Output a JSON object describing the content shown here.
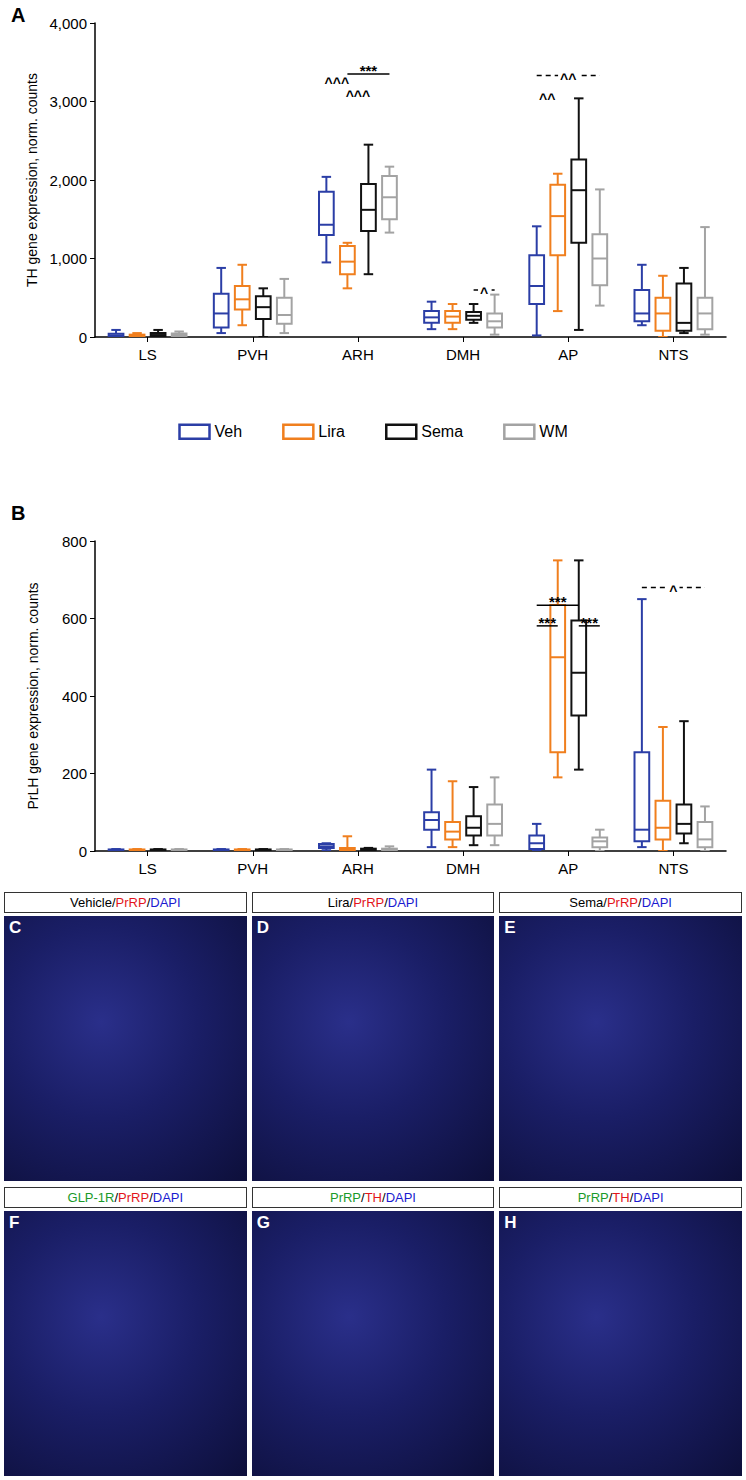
{
  "chart_data": [
    {
      "type": "boxplot",
      "panel": "A",
      "y_label": "TH gene expression, norm. counts",
      "categories": [
        "LS",
        "PVH",
        "ARH",
        "DMH",
        "AP",
        "NTS"
      ],
      "ylim": [
        0,
        4000
      ],
      "yticks": [
        0,
        1000,
        2000,
        3000,
        4000
      ],
      "grid": false,
      "legend": "bottom",
      "series": [
        {
          "name": "Veh",
          "color": "#2b3ea6",
          "values": [
            [
              0,
              5,
              20,
              40,
              90
            ],
            [
              50,
              120,
              300,
              550,
              880
            ],
            [
              950,
              1300,
              1430,
              1850,
              2040
            ],
            [
              100,
              180,
              250,
              330,
              450
            ],
            [
              20,
              420,
              650,
              1040,
              1410
            ],
            [
              150,
              200,
              300,
              600,
              920
            ]
          ]
        },
        {
          "name": "Lira",
          "color": "#f07f1e",
          "values": [
            [
              0,
              5,
              15,
              30,
              50
            ],
            [
              150,
              350,
              480,
              650,
              920
            ],
            [
              620,
              800,
              960,
              1160,
              1200
            ],
            [
              100,
              180,
              260,
              330,
              420
            ],
            [
              330,
              1040,
              1540,
              1940,
              2080
            ],
            [
              0,
              80,
              300,
              500,
              780
            ]
          ]
        },
        {
          "name": "Sema",
          "color": "#111111",
          "values": [
            [
              0,
              10,
              25,
              50,
              90
            ],
            [
              0,
              230,
              380,
              520,
              620
            ],
            [
              800,
              1350,
              1620,
              1950,
              2450
            ],
            [
              180,
              220,
              270,
              320,
              420
            ],
            [
              90,
              1200,
              1870,
              2260,
              3040
            ],
            [
              50,
              80,
              180,
              680,
              880
            ]
          ]
        },
        {
          "name": "WM",
          "color": "#a3a3a3",
          "values": [
            [
              0,
              10,
              25,
              45,
              70
            ],
            [
              50,
              170,
              280,
              500,
              740
            ],
            [
              1330,
              1500,
              1780,
              2050,
              2170
            ],
            [
              30,
              120,
              200,
              300,
              540
            ],
            [
              400,
              660,
              1000,
              1310,
              1880
            ],
            [
              30,
              100,
              300,
              500,
              1400
            ]
          ]
        }
      ],
      "annotations": [
        {
          "text": "***",
          "category": "ARH",
          "from": "Lira",
          "to": "WM",
          "y": 3350,
          "line_style": "solid"
        },
        {
          "text": "^^^",
          "category": "ARH",
          "from": "Veh",
          "to": "Lira",
          "y": 3200,
          "line_style": "none"
        },
        {
          "text": "^^^",
          "category": "ARH",
          "from": "Lira",
          "to": "Sema",
          "y": 3030,
          "line_style": "none"
        },
        {
          "text": "^",
          "category": "DMH",
          "from": "Sema",
          "to": "WM",
          "y": 600,
          "line_style": "dashed"
        },
        {
          "text": "^^",
          "category": "AP",
          "from": "Veh",
          "to": "WM",
          "y": 3330,
          "line_style": "dashed"
        },
        {
          "text": "^^",
          "category": "AP",
          "from": "Veh",
          "to": "Lira",
          "y": 3000,
          "line_style": "none"
        }
      ]
    },
    {
      "type": "boxplot",
      "panel": "B",
      "y_label": "PrLH gene expression, norm. counts",
      "categories": [
        "LS",
        "PVH",
        "ARH",
        "DMH",
        "AP",
        "NTS"
      ],
      "ylim": [
        0,
        800
      ],
      "yticks": [
        0,
        200,
        400,
        600,
        800
      ],
      "grid": false,
      "series": [
        {
          "name": "Veh",
          "color": "#2b3ea6",
          "values": [
            [
              0,
              0,
              2,
              4,
              5
            ],
            [
              0,
              0,
              2,
              4,
              5
            ],
            [
              2,
              8,
              12,
              18,
              20
            ],
            [
              10,
              55,
              80,
              100,
              210
            ],
            [
              0,
              5,
              20,
              40,
              70
            ],
            [
              10,
              25,
              55,
              255,
              650
            ]
          ]
        },
        {
          "name": "Lira",
          "color": "#f07f1e",
          "values": [
            [
              0,
              0,
              2,
              4,
              5
            ],
            [
              0,
              0,
              2,
              4,
              5
            ],
            [
              0,
              2,
              4,
              8,
              38
            ],
            [
              10,
              30,
              50,
              75,
              180
            ],
            [
              190,
              255,
              500,
              635,
              750
            ],
            [
              0,
              30,
              60,
              130,
              320
            ]
          ]
        },
        {
          "name": "Sema",
          "color": "#111111",
          "values": [
            [
              0,
              0,
              2,
              4,
              5
            ],
            [
              0,
              0,
              2,
              4,
              5
            ],
            [
              0,
              2,
              4,
              6,
              8
            ],
            [
              15,
              40,
              60,
              90,
              165
            ],
            [
              210,
              350,
              460,
              595,
              750
            ],
            [
              20,
              45,
              70,
              120,
              335
            ]
          ]
        },
        {
          "name": "WM",
          "color": "#a3a3a3",
          "values": [
            [
              0,
              0,
              2,
              4,
              5
            ],
            [
              0,
              0,
              2,
              4,
              5
            ],
            [
              0,
              2,
              4,
              6,
              12
            ],
            [
              15,
              40,
              70,
              120,
              190
            ],
            [
              0,
              10,
              25,
              35,
              55
            ],
            [
              0,
              10,
              30,
              75,
              115
            ]
          ]
        }
      ],
      "annotations": [
        {
          "text": "***",
          "category": "AP",
          "from": "Veh",
          "to": "Sema",
          "y": 634,
          "line_style": "solid"
        },
        {
          "text": "***",
          "category": "AP",
          "from": "Veh",
          "to": "Lira",
          "y": 581,
          "line_style": "solid"
        },
        {
          "text": "***",
          "category": "AP",
          "from": "Sema",
          "to": "WM",
          "y": 581,
          "line_style": "solid"
        },
        {
          "text": "^",
          "category": "NTS",
          "from": "Veh",
          "to": "WM",
          "y": 680,
          "line_style": "dashed"
        }
      ]
    }
  ],
  "image_panels": [
    {
      "label": "C",
      "title": [
        "Vehicle",
        "/",
        "PrRP",
        "/",
        "DAPI"
      ],
      "colors": [
        "#000000",
        "#000000",
        "#e3141b",
        "#000000",
        "#1a1ad0"
      ]
    },
    {
      "label": "D",
      "title": [
        "Lira",
        "/",
        "PrRP",
        "/",
        "DAPI"
      ],
      "colors": [
        "#000000",
        "#000000",
        "#e3141b",
        "#000000",
        "#1a1ad0"
      ]
    },
    {
      "label": "E",
      "title": [
        "Sema",
        "/",
        "PrRP",
        "/",
        "DAPI"
      ],
      "colors": [
        "#000000",
        "#000000",
        "#e3141b",
        "#000000",
        "#1a1ad0"
      ]
    },
    {
      "label": "F",
      "title": [
        "GLP-1R",
        "/",
        "PrRP",
        "/",
        "DAPI"
      ],
      "colors": [
        "#1a9a2a",
        "#000000",
        "#e3141b",
        "#000000",
        "#1a1ad0"
      ]
    },
    {
      "label": "G",
      "title": [
        "PrRP",
        "/",
        "TH",
        "/",
        "DAPI"
      ],
      "colors": [
        "#1a9a2a",
        "#000000",
        "#e3141b",
        "#000000",
        "#1a1ad0"
      ]
    },
    {
      "label": "H",
      "title": [
        "PrRP",
        "/",
        "TH",
        "/",
        "DAPI"
      ],
      "colors": [
        "#1a9a2a",
        "#000000",
        "#e3141b",
        "#000000",
        "#1a1ad0"
      ]
    }
  ]
}
